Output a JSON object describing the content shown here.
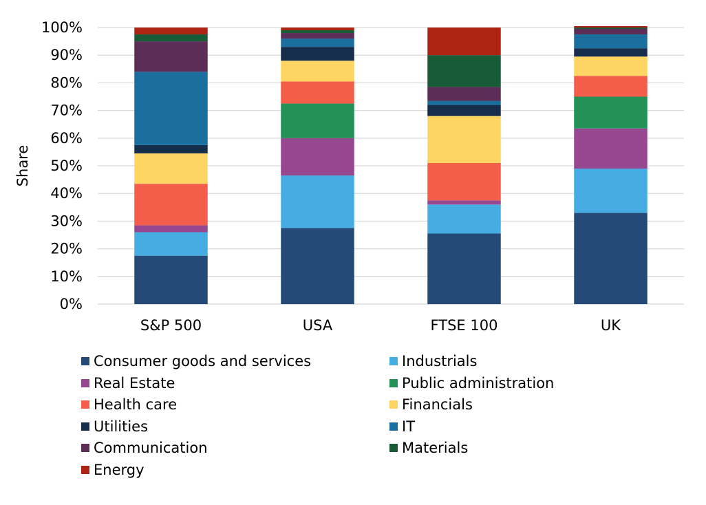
{
  "chart_data": {
    "type": "stacked-bar",
    "title": "",
    "xlabel": "",
    "ylabel": "Share",
    "ylim": [
      0,
      100
    ],
    "yticks": [
      "0%",
      "10%",
      "20%",
      "30%",
      "40%",
      "50%",
      "60%",
      "70%",
      "80%",
      "90%",
      "100%"
    ],
    "categories": [
      "S&P 500",
      "USA",
      "FTSE 100",
      "UK"
    ],
    "grid": true,
    "legend_position": "bottom",
    "series": [
      {
        "name": "Consumer goods and services",
        "color": "#264a78",
        "values": [
          17.5,
          27.5,
          25.5,
          33.0
        ]
      },
      {
        "name": "Industrials",
        "color": "#45ade2",
        "values": [
          8.5,
          19.0,
          10.5,
          16.0
        ]
      },
      {
        "name": "Real Estate",
        "color": "#97478f",
        "values": [
          2.5,
          13.5,
          1.5,
          14.5
        ]
      },
      {
        "name": "Public administration",
        "color": "#249256",
        "values": [
          0.0,
          12.5,
          0.0,
          11.5
        ]
      },
      {
        "name": "Health care",
        "color": "#f45d4a",
        "values": [
          15.0,
          8.0,
          13.5,
          7.5
        ]
      },
      {
        "name": "Financials",
        "color": "#fed562",
        "values": [
          11.0,
          7.5,
          17.0,
          7.0
        ]
      },
      {
        "name": "Utilities",
        "color": "#172d4c",
        "values": [
          3.0,
          5.0,
          4.0,
          3.0
        ]
      },
      {
        "name": "IT",
        "color": "#1b6f9f",
        "values": [
          26.5,
          3.0,
          1.5,
          5.0
        ]
      },
      {
        "name": "Communication",
        "color": "#5c2d57",
        "values": [
          11.0,
          2.0,
          5.0,
          2.0
        ]
      },
      {
        "name": "Materials",
        "color": "#175b37",
        "values": [
          2.5,
          1.0,
          11.5,
          0.5
        ]
      },
      {
        "name": "Energy",
        "color": "#ad2413",
        "values": [
          2.5,
          1.0,
          10.0,
          0.5
        ]
      }
    ]
  }
}
